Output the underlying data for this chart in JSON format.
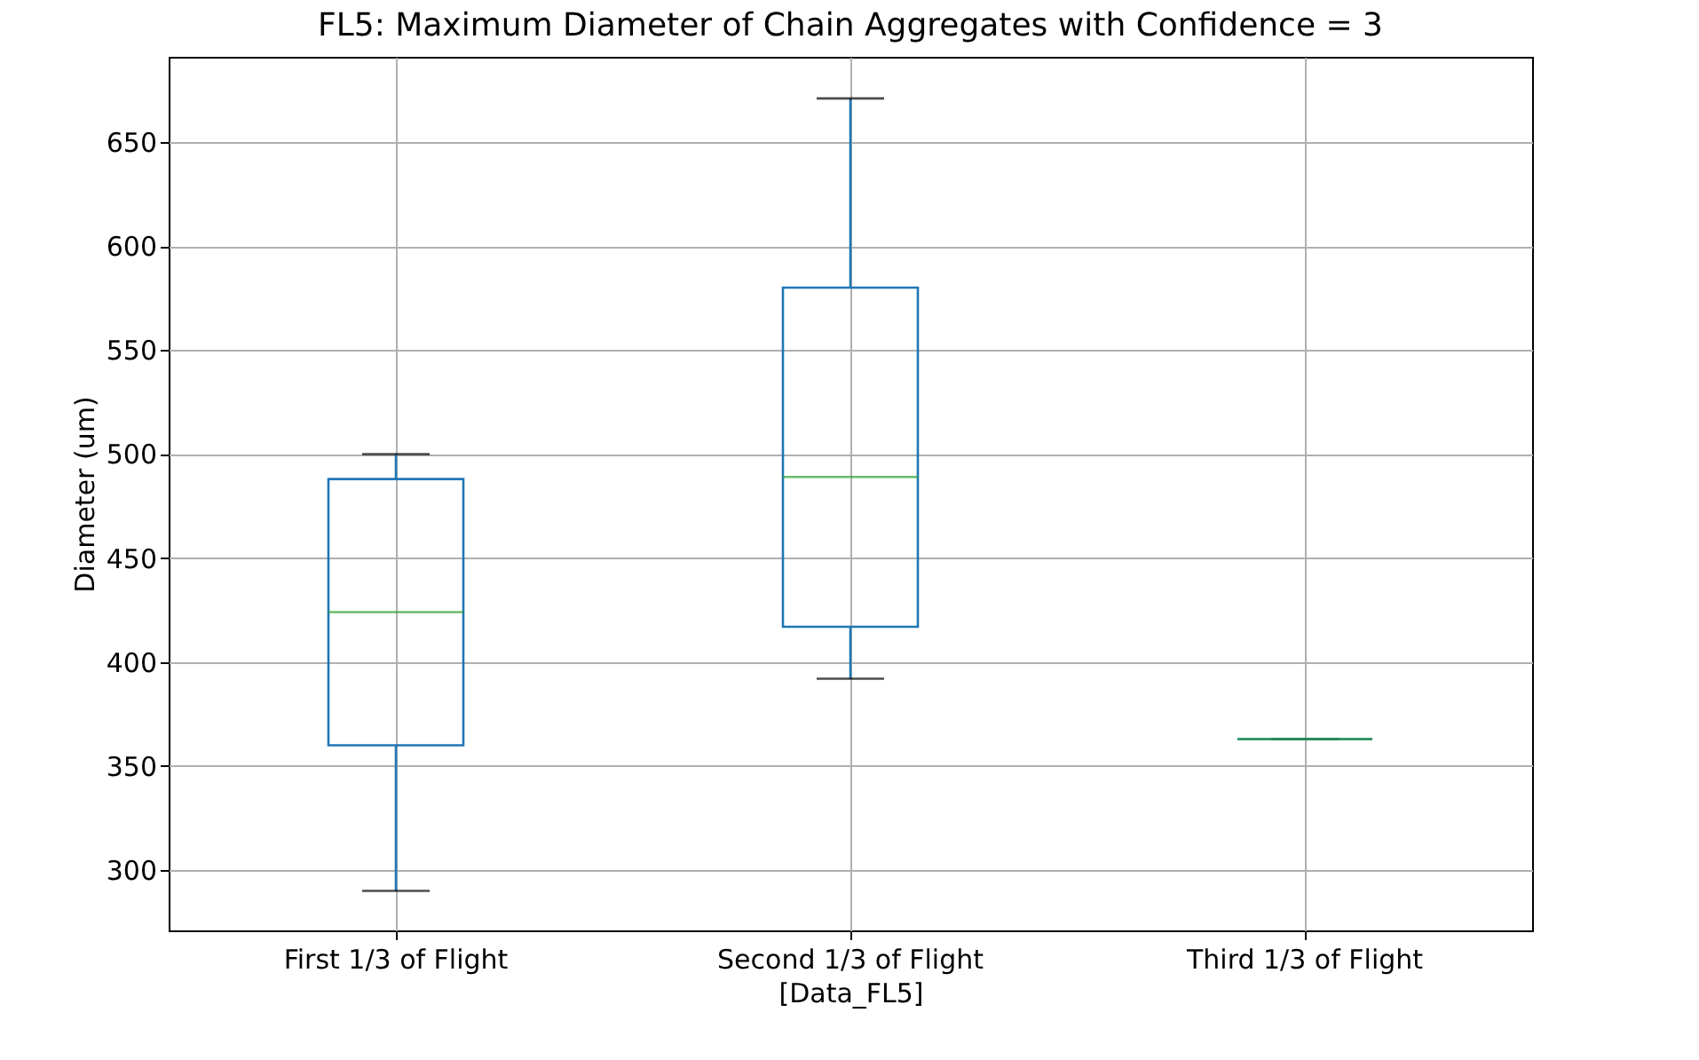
{
  "chart_data": {
    "type": "box",
    "title": "FL5: Maximum Diameter of Chain Aggregates with Confidence = 3",
    "xlabel": "[Data_FL5]",
    "ylabel": "Diameter (um)",
    "categories": [
      "First 1/3 of Flight",
      "Second 1/3 of Flight",
      "Third 1/3 of Flight"
    ],
    "boxes": [
      {
        "low": 290,
        "q1": 360,
        "median": 424,
        "q3": 488,
        "high": 500
      },
      {
        "low": 392,
        "q1": 417,
        "median": 489,
        "q3": 580,
        "high": 671
      },
      {
        "low": 363,
        "q1": 363,
        "median": 363,
        "q3": 363,
        "high": 363
      }
    ],
    "ylim": [
      271,
      691
    ],
    "yticks": [
      300,
      350,
      400,
      450,
      500,
      550,
      600,
      650
    ],
    "grid": true
  }
}
